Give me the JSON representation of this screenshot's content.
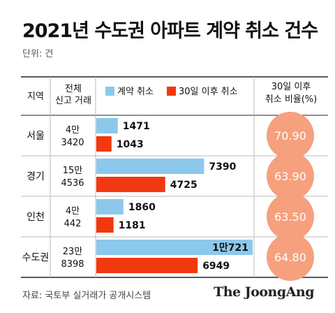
{
  "title": "2021년 수도권 아파트 계약 취소 건수",
  "unit_label": "단위: 건",
  "source": "자료: 국토부 실거래가 공개시스템",
  "brand": "The JoongAng",
  "headers": {
    "region": "지역",
    "total": [
      "전체",
      "신고 거래"
    ],
    "ratio": [
      "30일 이후",
      "취소 비율(%)"
    ]
  },
  "colors": {
    "contract_cancel": "#8cc8ec",
    "after30_cancel": "#f2380f",
    "ratio_circle": "#f6a07e",
    "rule": "#222222",
    "grid": "#bbbbbb"
  },
  "chart_data": {
    "type": "bar",
    "categories": [
      "서울",
      "경기",
      "인천",
      "수도권"
    ],
    "series": [
      {
        "name": "계약 취소",
        "values": [
          1471,
          7390,
          1860,
          10721
        ],
        "labels": [
          "1471",
          "7390",
          "1860",
          "1만721"
        ]
      },
      {
        "name": "30일 이후 취소",
        "values": [
          1043,
          4725,
          1181,
          6949
        ],
        "labels": [
          "1043",
          "4725",
          "1181",
          "6949"
        ]
      }
    ],
    "total_transactions": [
      [
        "4만",
        "3420"
      ],
      [
        "15만",
        "4536"
      ],
      [
        "4만",
        "442"
      ],
      [
        "23만",
        "8398"
      ]
    ],
    "cancel_ratio_after30": [
      "70.90",
      "63.90",
      "63.50",
      "64.80"
    ],
    "xlim": [
      0,
      10721
    ]
  }
}
